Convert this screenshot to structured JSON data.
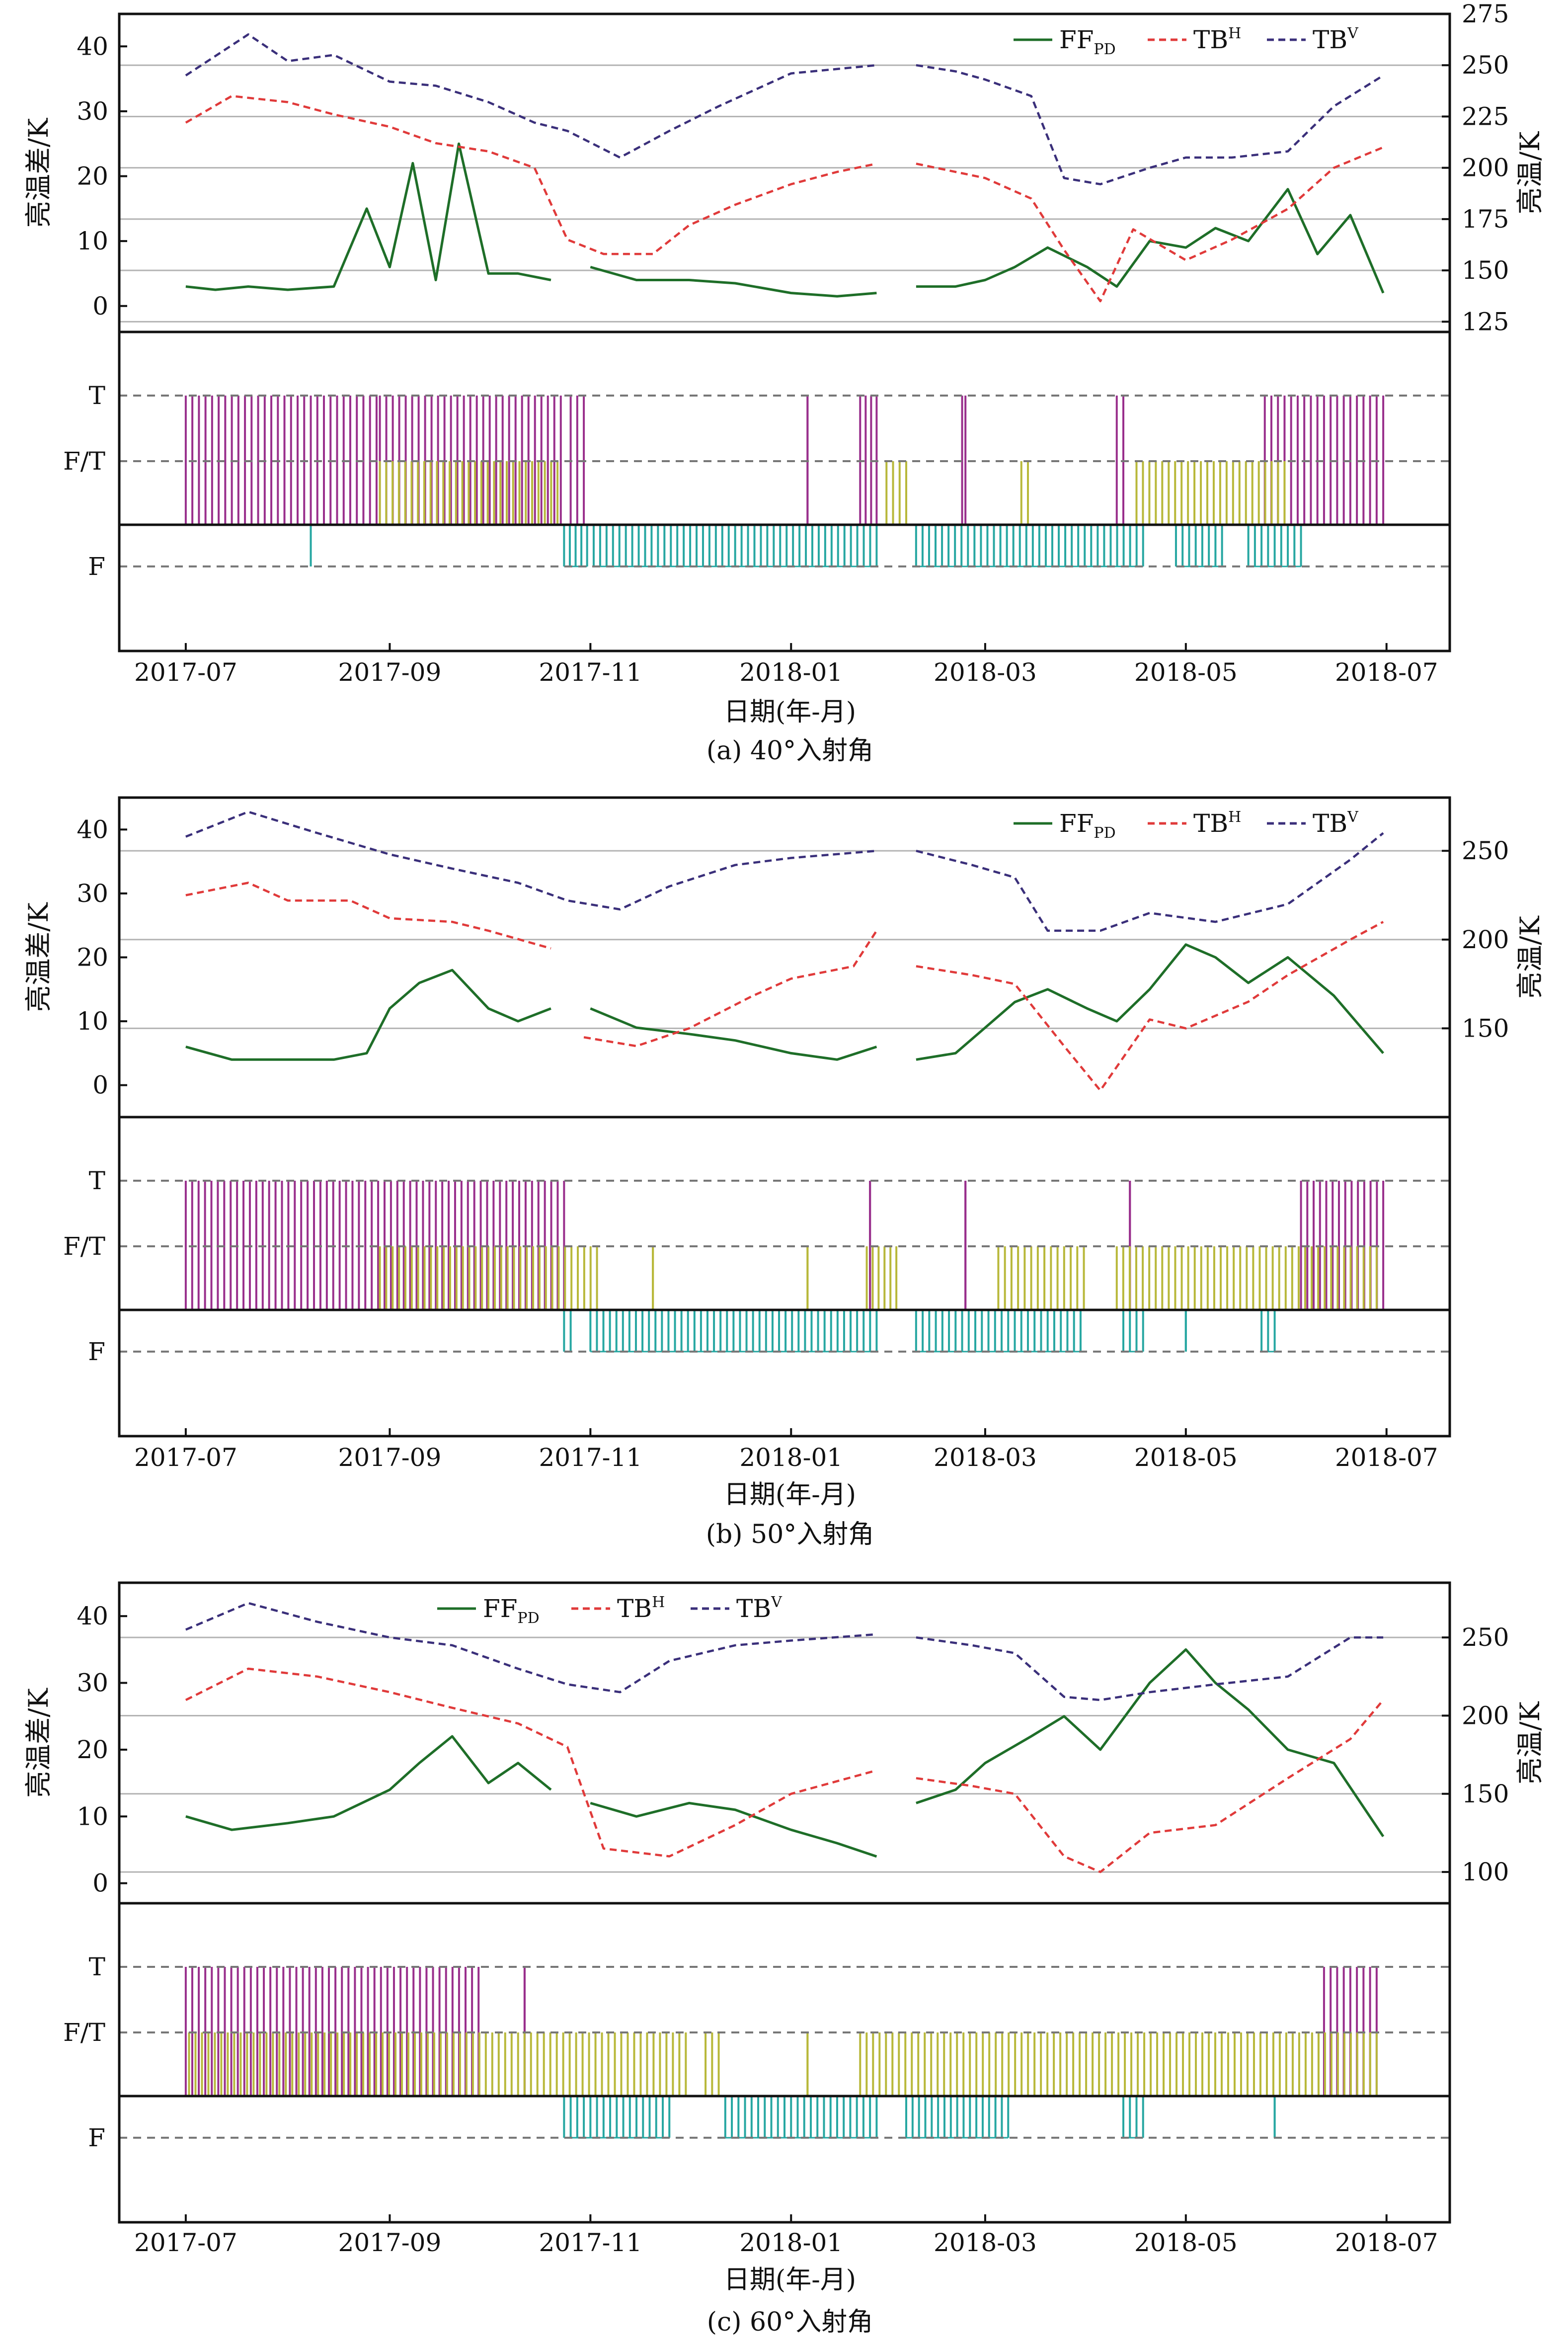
{
  "figure": {
    "x_ticks": [
      "2017-07",
      "2017-09",
      "2017-11",
      "2018-01",
      "2018-03",
      "2018-05",
      "2018-07"
    ],
    "xlabel": "日期(年-月)",
    "ylabel_left": "亮温差/K",
    "ylabel_right": "亮温/K",
    "state_labels": [
      "T",
      "F/T",
      "F"
    ],
    "legend": {
      "ff": {
        "base": "FF",
        "sub": "PD"
      },
      "tbh": {
        "base": "TB",
        "sup": "H"
      },
      "tbv": {
        "base": "TB",
        "sup": "V"
      }
    },
    "colors": {
      "ff": "#1e6e28",
      "tbh": "#e03a3a",
      "tbv": "#3a2f7a",
      "thawed": "#992f8c",
      "transition": "#b8b83a",
      "frozen": "#27a7a2",
      "grid": "#b4b4b4",
      "ref_dash": "#777777"
    }
  },
  "chart_data": [
    {
      "type": "line",
      "caption": "(a) 40°入射角",
      "x_range": [
        "2017-07-01",
        "2018-06-30"
      ],
      "gaps": [
        [
          "2017-10-23",
          "2017-10-25"
        ],
        [
          "2018-01-28",
          "2018-02-07"
        ]
      ],
      "left_axis": {
        "ticks": [
          0,
          10,
          20,
          30,
          40
        ],
        "ylim": [
          -4,
          45
        ]
      },
      "right_axis": {
        "ticks": [
          125,
          150,
          175,
          200,
          225,
          250,
          275
        ],
        "ylim": [
          120,
          275
        ]
      },
      "series": [
        {
          "name": "FF_PD",
          "axis": "left",
          "x": [
            "2017-07-01",
            "2017-07-10",
            "2017-07-20",
            "2017-08-01",
            "2017-08-15",
            "2017-08-25",
            "2017-09-01",
            "2017-09-08",
            "2017-09-15",
            "2017-09-22",
            "2017-10-01",
            "2017-10-10",
            "2017-10-20",
            "2017-11-01",
            "2017-11-15",
            "2017-12-01",
            "2017-12-15",
            "2018-01-01",
            "2018-01-15",
            "2018-01-27",
            "2018-02-08",
            "2018-02-20",
            "2018-03-01",
            "2018-03-10",
            "2018-03-20",
            "2018-04-01",
            "2018-04-10",
            "2018-04-20",
            "2018-05-01",
            "2018-05-10",
            "2018-05-20",
            "2018-06-01",
            "2018-06-10",
            "2018-06-20",
            "2018-06-30"
          ],
          "y": [
            3,
            2.5,
            3,
            2.5,
            3,
            15,
            6,
            22,
            4,
            25,
            5,
            5,
            4,
            6,
            4,
            4,
            3.5,
            2,
            1.5,
            2,
            3,
            3,
            4,
            6,
            9,
            6,
            3,
            10,
            9,
            12,
            10,
            18,
            8,
            14,
            2
          ]
        },
        {
          "name": "TB^H",
          "axis": "right",
          "x": [
            "2017-07-01",
            "2017-07-15",
            "2017-08-01",
            "2017-08-15",
            "2017-09-01",
            "2017-09-15",
            "2017-10-01",
            "2017-10-15",
            "2017-10-25",
            "2017-11-05",
            "2017-11-20",
            "2017-12-01",
            "2017-12-15",
            "2018-01-01",
            "2018-01-15",
            "2018-01-27",
            "2018-02-08",
            "2018-02-20",
            "2018-03-01",
            "2018-03-15",
            "2018-03-25",
            "2018-04-05",
            "2018-04-15",
            "2018-05-01",
            "2018-05-15",
            "2018-06-01",
            "2018-06-15",
            "2018-06-30"
          ],
          "y": [
            222,
            235,
            232,
            226,
            220,
            212,
            208,
            200,
            165,
            158,
            158,
            172,
            182,
            192,
            198,
            202,
            202,
            198,
            195,
            185,
            160,
            135,
            170,
            155,
            165,
            180,
            200,
            210
          ]
        },
        {
          "name": "TB^V",
          "axis": "right",
          "x": [
            "2017-07-01",
            "2017-07-20",
            "2017-08-01",
            "2017-08-15",
            "2017-09-01",
            "2017-09-15",
            "2017-10-01",
            "2017-10-15",
            "2017-10-25",
            "2017-11-10",
            "2017-11-25",
            "2017-12-10",
            "2018-01-01",
            "2018-01-27",
            "2018-02-08",
            "2018-02-20",
            "2018-03-01",
            "2018-03-15",
            "2018-03-25",
            "2018-04-05",
            "2018-04-20",
            "2018-05-01",
            "2018-05-15",
            "2018-06-01",
            "2018-06-15",
            "2018-06-30"
          ],
          "y": [
            245,
            265,
            252,
            255,
            242,
            240,
            232,
            222,
            218,
            205,
            218,
            230,
            246,
            250,
            250,
            247,
            243,
            235,
            195,
            192,
            200,
            205,
            205,
            208,
            230,
            245
          ]
        }
      ]
    },
    {
      "type": "line",
      "caption": "(b) 50°入射角",
      "x_range": [
        "2017-07-01",
        "2018-06-30"
      ],
      "gaps": [
        [
          "2017-10-23",
          "2017-10-25"
        ],
        [
          "2018-01-28",
          "2018-02-07"
        ]
      ],
      "left_axis": {
        "ticks": [
          0,
          10,
          20,
          30,
          40
        ],
        "ylim": [
          -5,
          45
        ]
      },
      "right_axis": {
        "ticks": [
          150,
          200,
          250
        ],
        "ylim": [
          100,
          280
        ]
      },
      "series": [
        {
          "name": "FF_PD",
          "axis": "left",
          "x": [
            "2017-07-01",
            "2017-07-15",
            "2017-08-01",
            "2017-08-15",
            "2017-08-25",
            "2017-09-01",
            "2017-09-10",
            "2017-09-20",
            "2017-10-01",
            "2017-10-10",
            "2017-10-20",
            "2017-11-01",
            "2017-11-15",
            "2017-12-01",
            "2017-12-15",
            "2018-01-01",
            "2018-01-15",
            "2018-01-27",
            "2018-02-08",
            "2018-02-20",
            "2018-03-01",
            "2018-03-10",
            "2018-03-20",
            "2018-04-01",
            "2018-04-10",
            "2018-04-20",
            "2018-05-01",
            "2018-05-10",
            "2018-05-20",
            "2018-06-01",
            "2018-06-15",
            "2018-06-30"
          ],
          "y": [
            6,
            4,
            4,
            4,
            5,
            12,
            16,
            18,
            12,
            10,
            12,
            12,
            9,
            8,
            7,
            5,
            4,
            6,
            4,
            5,
            9,
            13,
            15,
            12,
            10,
            15,
            22,
            20,
            16,
            20,
            14,
            5
          ]
        },
        {
          "name": "TB^H",
          "axis": "right",
          "x": [
            "2017-07-01",
            "2017-07-20",
            "2017-08-01",
            "2017-08-20",
            "2017-09-01",
            "2017-09-20",
            "2017-10-01",
            "2017-10-20",
            "2017-10-30",
            "2017-11-15",
            "2017-12-01",
            "2017-12-20",
            "2018-01-01",
            "2018-01-20",
            "2018-01-27",
            "2018-02-08",
            "2018-02-25",
            "2018-03-10",
            "2018-03-25",
            "2018-04-05",
            "2018-04-20",
            "2018-05-01",
            "2018-05-20",
            "2018-06-01",
            "2018-06-20",
            "2018-06-30"
          ],
          "y": [
            225,
            232,
            222,
            222,
            212,
            210,
            205,
            195,
            145,
            140,
            150,
            168,
            178,
            185,
            205,
            185,
            180,
            175,
            140,
            115,
            155,
            150,
            165,
            180,
            200,
            210
          ]
        },
        {
          "name": "TB^V",
          "axis": "right",
          "x": [
            "2017-07-01",
            "2017-07-20",
            "2017-08-10",
            "2017-09-01",
            "2017-09-20",
            "2017-10-10",
            "2017-10-25",
            "2017-11-10",
            "2017-11-25",
            "2017-12-15",
            "2018-01-01",
            "2018-01-27",
            "2018-02-08",
            "2018-02-25",
            "2018-03-10",
            "2018-03-20",
            "2018-04-05",
            "2018-04-20",
            "2018-05-10",
            "2018-06-01",
            "2018-06-20",
            "2018-06-30"
          ],
          "y": [
            258,
            272,
            260,
            248,
            240,
            232,
            222,
            217,
            230,
            242,
            246,
            250,
            250,
            242,
            235,
            205,
            205,
            215,
            210,
            220,
            245,
            260
          ]
        }
      ]
    },
    {
      "type": "line",
      "caption": "(c) 60°入射角",
      "x_range": [
        "2017-07-01",
        "2018-06-30"
      ],
      "gaps": [
        [
          "2017-10-23",
          "2017-10-25"
        ],
        [
          "2018-01-28",
          "2018-02-07"
        ]
      ],
      "left_axis": {
        "ticks": [
          0,
          10,
          20,
          30,
          40
        ],
        "ylim": [
          -3,
          45
        ]
      },
      "right_axis": {
        "ticks": [
          100,
          150,
          200,
          250
        ],
        "ylim": [
          80,
          285
        ]
      },
      "series": [
        {
          "name": "FF_PD",
          "axis": "left",
          "x": [
            "2017-07-01",
            "2017-07-15",
            "2017-08-01",
            "2017-08-15",
            "2017-09-01",
            "2017-09-10",
            "2017-09-20",
            "2017-10-01",
            "2017-10-10",
            "2017-10-20",
            "2017-11-01",
            "2017-11-15",
            "2017-12-01",
            "2017-12-15",
            "2018-01-01",
            "2018-01-15",
            "2018-01-27",
            "2018-02-08",
            "2018-02-20",
            "2018-03-01",
            "2018-03-15",
            "2018-03-25",
            "2018-04-05",
            "2018-04-20",
            "2018-05-01",
            "2018-05-10",
            "2018-05-20",
            "2018-06-01",
            "2018-06-15",
            "2018-06-30"
          ],
          "y": [
            10,
            8,
            9,
            10,
            14,
            18,
            22,
            15,
            18,
            14,
            12,
            10,
            12,
            11,
            8,
            6,
            4,
            12,
            14,
            18,
            22,
            25,
            20,
            30,
            35,
            30,
            26,
            20,
            18,
            7
          ]
        },
        {
          "name": "TB^H",
          "axis": "right",
          "x": [
            "2017-07-01",
            "2017-07-20",
            "2017-08-10",
            "2017-09-01",
            "2017-09-20",
            "2017-10-10",
            "2017-10-25",
            "2017-11-05",
            "2017-11-25",
            "2017-12-15",
            "2018-01-01",
            "2018-01-27",
            "2018-02-08",
            "2018-02-25",
            "2018-03-10",
            "2018-03-25",
            "2018-04-05",
            "2018-04-20",
            "2018-05-10",
            "2018-06-01",
            "2018-06-20",
            "2018-06-30"
          ],
          "y": [
            210,
            230,
            225,
            215,
            205,
            195,
            180,
            115,
            110,
            130,
            150,
            165,
            160,
            155,
            150,
            110,
            100,
            125,
            130,
            160,
            185,
            210
          ]
        },
        {
          "name": "TB^V",
          "axis": "right",
          "x": [
            "2017-07-01",
            "2017-07-20",
            "2017-08-10",
            "2017-09-01",
            "2017-09-20",
            "2017-10-10",
            "2017-10-25",
            "2017-11-10",
            "2017-11-25",
            "2017-12-15",
            "2018-01-01",
            "2018-01-27",
            "2018-02-08",
            "2018-02-25",
            "2018-03-10",
            "2018-03-25",
            "2018-04-05",
            "2018-04-20",
            "2018-05-10",
            "2018-06-01",
            "2018-06-20",
            "2018-06-30"
          ],
          "y": [
            255,
            272,
            260,
            250,
            245,
            230,
            220,
            215,
            235,
            245,
            248,
            252,
            250,
            245,
            240,
            212,
            210,
            215,
            220,
            225,
            250,
            250
          ]
        }
      ]
    }
  ],
  "state_data": [
    {
      "thawed": [
        [
          "2017-07-01",
          "2017-07-31"
        ],
        [
          "2017-08-02",
          "2017-08-28"
        ],
        [
          "2017-08-29",
          "2017-10-23"
        ],
        [
          "2017-10-26",
          "2017-10-30"
        ],
        [
          "2018-01-06",
          "2018-01-06"
        ],
        [
          "2018-01-22",
          "2018-01-27"
        ],
        [
          "2018-02-22",
          "2018-02-23"
        ],
        [
          "2018-04-10",
          "2018-04-12"
        ],
        [
          "2018-05-25",
          "2018-06-30"
        ]
      ],
      "transition": [
        [
          "2017-08-29",
          "2017-10-22"
        ],
        [
          "2018-01-30",
          "2018-02-05"
        ],
        [
          "2018-03-12",
          "2018-03-14"
        ],
        [
          "2018-04-16",
          "2018-05-31"
        ]
      ],
      "frozen": [
        [
          "2017-08-08",
          "2017-08-08"
        ],
        [
          "2017-10-24",
          "2017-10-31"
        ],
        [
          "2017-11-02",
          "2018-01-27"
        ],
        [
          "2018-02-08",
          "2018-04-18"
        ],
        [
          "2018-04-28",
          "2018-05-12"
        ],
        [
          "2018-05-20",
          "2018-06-05"
        ]
      ]
    },
    {
      "thawed": [
        [
          "2017-07-01",
          "2017-10-24"
        ],
        [
          "2018-01-25",
          "2018-01-25"
        ],
        [
          "2018-02-23",
          "2018-02-23"
        ],
        [
          "2018-04-14",
          "2018-04-14"
        ],
        [
          "2018-06-05",
          "2018-06-30"
        ]
      ],
      "transition": [
        [
          "2017-08-29",
          "2017-11-03"
        ],
        [
          "2017-11-20",
          "2017-11-20"
        ],
        [
          "2018-01-06",
          "2018-01-06"
        ],
        [
          "2018-01-24",
          "2018-02-02"
        ],
        [
          "2018-03-05",
          "2018-03-31"
        ],
        [
          "2018-04-10",
          "2018-06-28"
        ]
      ],
      "frozen": [
        [
          "2017-10-24",
          "2017-10-26"
        ],
        [
          "2017-11-01",
          "2018-01-27"
        ],
        [
          "2018-02-08",
          "2018-03-30"
        ],
        [
          "2018-04-12",
          "2018-04-18"
        ],
        [
          "2018-05-01",
          "2018-05-01"
        ],
        [
          "2018-05-24",
          "2018-05-28"
        ]
      ]
    },
    {
      "thawed": [
        [
          "2017-07-01",
          "2017-09-28"
        ],
        [
          "2017-10-12",
          "2017-10-12"
        ],
        [
          "2018-06-12",
          "2018-06-28"
        ]
      ],
      "transition": [
        [
          "2017-07-02",
          "2017-11-30"
        ],
        [
          "2017-12-06",
          "2017-12-10"
        ],
        [
          "2018-01-06",
          "2018-01-06"
        ],
        [
          "2018-01-22",
          "2018-06-28"
        ]
      ],
      "frozen": [
        [
          "2017-10-24",
          "2017-11-25"
        ],
        [
          "2017-12-12",
          "2018-01-27"
        ],
        [
          "2018-02-05",
          "2018-03-08"
        ],
        [
          "2018-04-12",
          "2018-04-18"
        ],
        [
          "2018-05-28",
          "2018-05-28"
        ]
      ]
    }
  ]
}
